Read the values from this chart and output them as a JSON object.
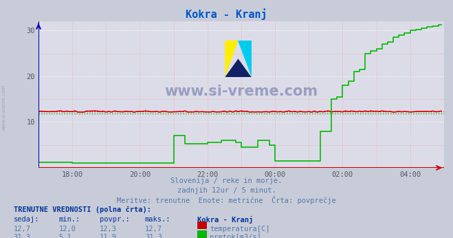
{
  "title": "Kokra - Kranj",
  "title_color": "#0055cc",
  "bg_color": "#c8ccd8",
  "plot_bg_color": "#dcdce8",
  "grid_color_major": "#ffffff",
  "grid_color_minor": "#e8a0a0",
  "xlabel": "",
  "ylabel": "",
  "xlim": [
    0,
    144
  ],
  "ylim": [
    0,
    32
  ],
  "yticks": [
    10,
    20,
    30
  ],
  "xtick_labels": [
    "18:00",
    "20:00",
    "22:00",
    "00:00",
    "02:00",
    "04:00"
  ],
  "xtick_positions": [
    12,
    36,
    60,
    84,
    108,
    132
  ],
  "temp_color": "#dd0000",
  "flow_color": "#00bb00",
  "temp_avg": 12.3,
  "flow_avg": 11.9,
  "watermark_text": "www.si-vreme.com",
  "subtitle1": "Slovenija / reke in morje.",
  "subtitle2": "zadnjih 12ur / 5 minut.",
  "subtitle3": "Meritve: trenutne  Enote: metrične  Črta: povprečje",
  "legend_title": "TRENUTNE VREDNOSTI (polna črta):",
  "legend_headers": [
    "sedaj:",
    "min.:",
    "povpr.:",
    "maks.:",
    "Kokra - Kranj"
  ],
  "temp_stats": [
    "12,7",
    "12,0",
    "12,3",
    "12,7"
  ],
  "flow_stats": [
    "31,3",
    "5,1",
    "11,9",
    "31,3"
  ],
  "temp_label": "temperatura[C]",
  "flow_label": "pretok[m3/s]",
  "axis_left_color": "#0000bb",
  "axis_bottom_color": "#cc0000"
}
